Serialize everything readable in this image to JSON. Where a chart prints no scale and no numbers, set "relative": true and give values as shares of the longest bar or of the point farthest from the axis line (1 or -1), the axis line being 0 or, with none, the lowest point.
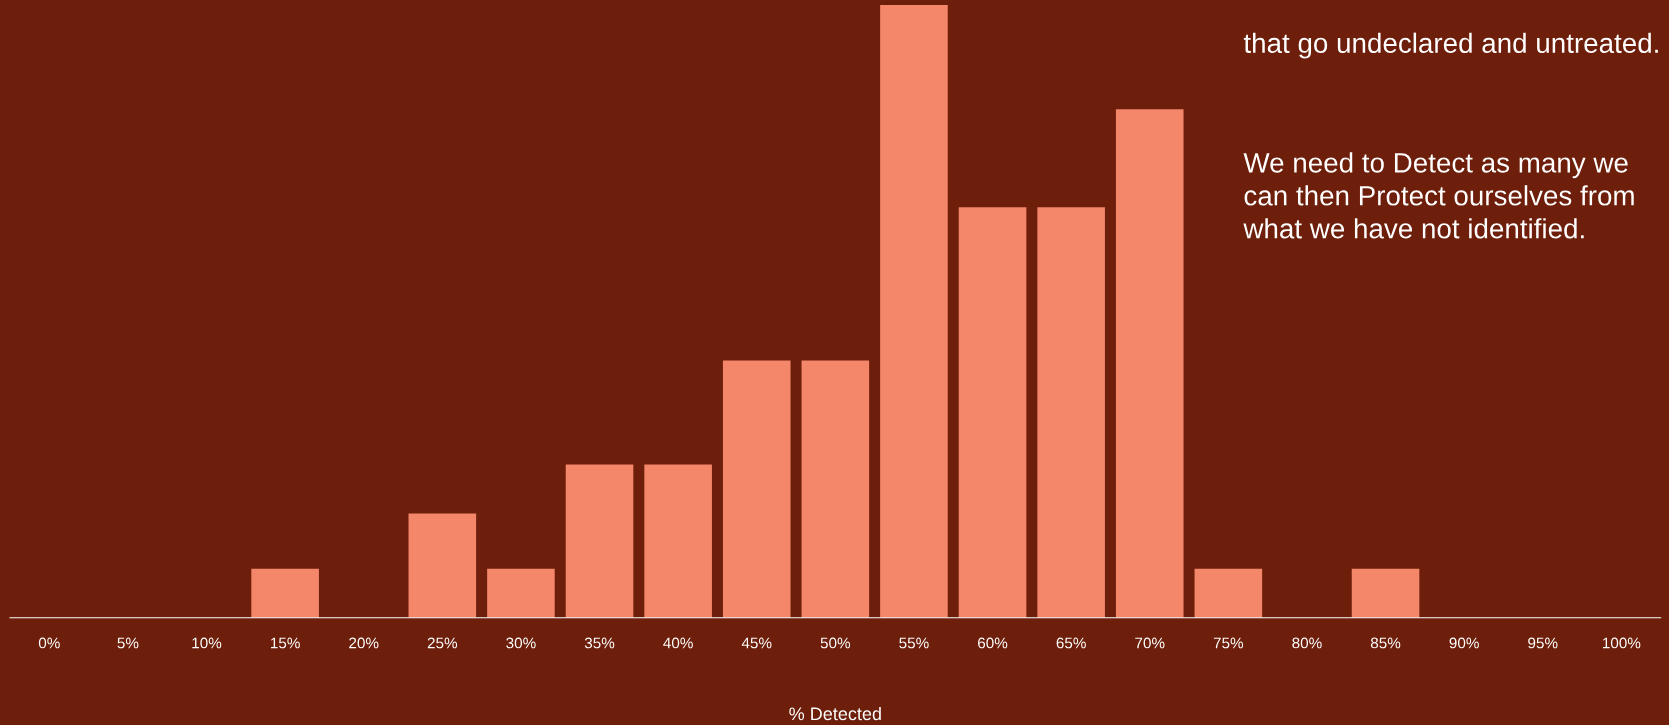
{
  "chart_data": {
    "type": "bar",
    "relative": true,
    "xlabel": "% Detected",
    "color": "#f4866a",
    "categories": [
      "0%",
      "5%",
      "10%",
      "15%",
      "20%",
      "25%",
      "30%",
      "35%",
      "40%",
      "45%",
      "50%",
      "55%",
      "60%",
      "65%",
      "70%",
      "75%",
      "80%",
      "85%",
      "90%",
      "95%",
      "100%"
    ],
    "values": [
      0,
      0,
      0,
      0.08,
      0,
      0.17,
      0.08,
      0.25,
      0.25,
      0.42,
      0.42,
      1,
      0.67,
      0.67,
      0.83,
      0.08,
      0,
      0.08,
      0,
      0,
      0
    ],
    "annotations": [
      "that go undeclared and untreated.",
      "We need to Detect as many we can then Protect ourselves from what we have not identified."
    ],
    "grid": false
  }
}
